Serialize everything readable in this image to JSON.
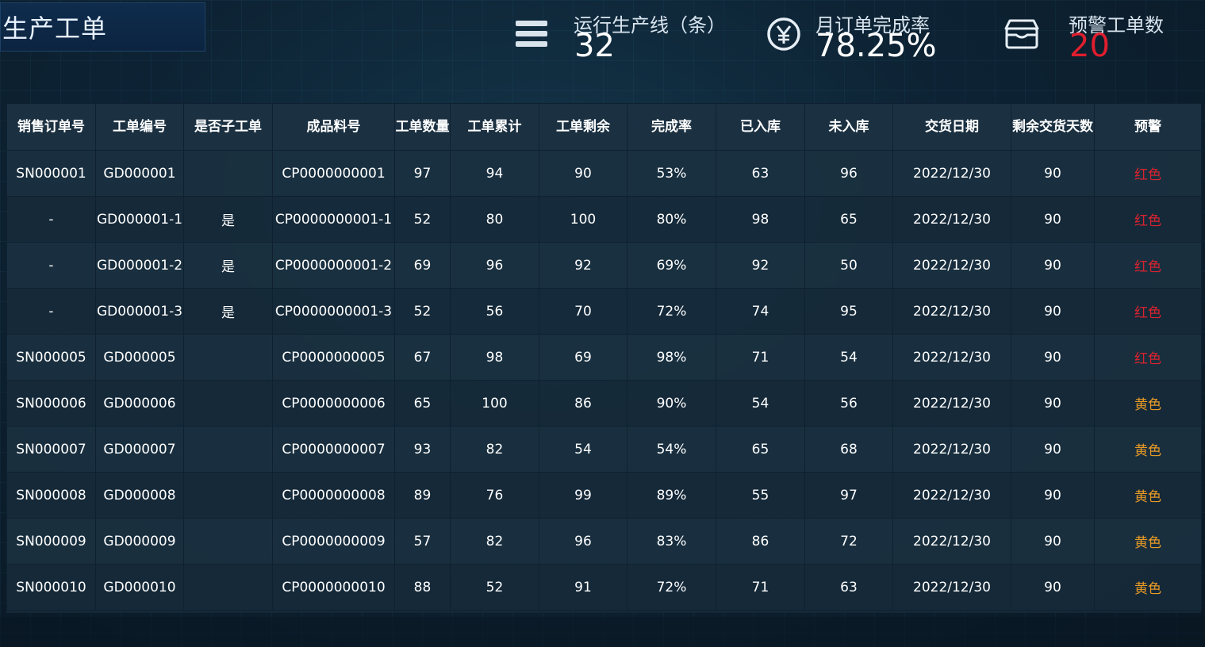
{
  "page_title": "生产工单",
  "stats": {
    "lines": {
      "label": "运行生产线（条）",
      "value": "32",
      "icon": "menu-icon"
    },
    "completion": {
      "label": "月订单完成率",
      "value": "78.25%",
      "icon": "yen-icon"
    },
    "warning": {
      "label": "预警工单数",
      "value": "20",
      "icon": "box-icon"
    }
  },
  "colors": {
    "warning_red": "#d8232f",
    "warning_yellow": "#e89a25",
    "stat_red": "#e01e2e"
  },
  "table": {
    "headers": [
      "销售订单号",
      "工单编号",
      "是否子工单",
      "成品料号",
      "工单数量",
      "工单累计",
      "工单剩余",
      "完成率",
      "已入库",
      "未入库",
      "交货日期",
      "剩余交货天数",
      "预警"
    ],
    "rows": [
      [
        "SN000001",
        "GD000001",
        "",
        "CP0000000001",
        "97",
        "94",
        "90",
        "53%",
        "63",
        "96",
        "2022/12/30",
        "90",
        "红色"
      ],
      [
        "-",
        "GD000001-1",
        "是",
        "CP0000000001-1",
        "52",
        "80",
        "100",
        "80%",
        "98",
        "65",
        "2022/12/30",
        "90",
        "红色"
      ],
      [
        "-",
        "GD000001-2",
        "是",
        "CP0000000001-2",
        "69",
        "96",
        "92",
        "69%",
        "92",
        "50",
        "2022/12/30",
        "90",
        "红色"
      ],
      [
        "-",
        "GD000001-3",
        "是",
        "CP0000000001-3",
        "52",
        "56",
        "70",
        "72%",
        "74",
        "95",
        "2022/12/30",
        "90",
        "红色"
      ],
      [
        "SN000005",
        "GD000005",
        "",
        "CP0000000005",
        "67",
        "98",
        "69",
        "98%",
        "71",
        "54",
        "2022/12/30",
        "90",
        "红色"
      ],
      [
        "SN000006",
        "GD000006",
        "",
        "CP0000000006",
        "65",
        "100",
        "86",
        "90%",
        "54",
        "56",
        "2022/12/30",
        "90",
        "黄色"
      ],
      [
        "SN000007",
        "GD000007",
        "",
        "CP0000000007",
        "93",
        "82",
        "54",
        "54%",
        "65",
        "68",
        "2022/12/30",
        "90",
        "黄色"
      ],
      [
        "SN000008",
        "GD000008",
        "",
        "CP0000000008",
        "89",
        "76",
        "99",
        "89%",
        "55",
        "97",
        "2022/12/30",
        "90",
        "黄色"
      ],
      [
        "SN000009",
        "GD000009",
        "",
        "CP0000000009",
        "57",
        "82",
        "96",
        "83%",
        "86",
        "72",
        "2022/12/30",
        "90",
        "黄色"
      ],
      [
        "SN000010",
        "GD000010",
        "",
        "CP0000000010",
        "88",
        "52",
        "91",
        "72%",
        "71",
        "63",
        "2022/12/30",
        "90",
        "黄色"
      ]
    ]
  }
}
